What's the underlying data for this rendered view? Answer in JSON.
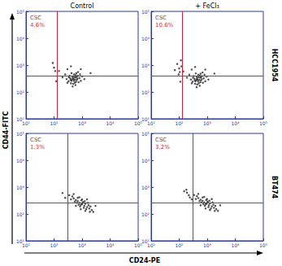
{
  "figure": {
    "columns": [
      "Control",
      "+ FeCl₃"
    ],
    "rows": [
      "HCC1954",
      "BT474"
    ],
    "xlabel": "CD24-PE",
    "ylabel": "CD44-FITC"
  },
  "chart_data": [
    {
      "type": "scatter",
      "log": true,
      "xlim": [
        10,
        100000
      ],
      "ylim": [
        10,
        100000
      ],
      "xticks": [
        {
          "value": 10,
          "label": "10¹"
        },
        {
          "value": 100,
          "label": "10²"
        },
        {
          "value": 1000,
          "label": "10³"
        },
        {
          "value": 10000,
          "label": "10⁴"
        },
        {
          "value": 100000,
          "label": "10⁵"
        }
      ],
      "yticks": [
        {
          "value": 10,
          "label": "10¹"
        },
        {
          "value": 100,
          "label": "10²"
        },
        {
          "value": 1000,
          "label": "10³"
        },
        {
          "value": 10000,
          "label": "10⁴"
        },
        {
          "value": 100000,
          "label": "10⁵"
        }
      ],
      "gate": {
        "x": 130,
        "y": 400
      },
      "annotation": {
        "label": "CSC",
        "value": 4.6,
        "value_label": "4,6%"
      },
      "points": [
        [
          500,
          300
        ],
        [
          420,
          260
        ],
        [
          600,
          350
        ],
        [
          380,
          320
        ],
        [
          650,
          280
        ],
        [
          550,
          220
        ],
        [
          450,
          380
        ],
        [
          700,
          400
        ],
        [
          330,
          250
        ],
        [
          520,
          450
        ],
        [
          800,
          330
        ],
        [
          480,
          200
        ],
        [
          360,
          400
        ],
        [
          620,
          500
        ],
        [
          900,
          260
        ],
        [
          280,
          300
        ],
        [
          560,
          290
        ],
        [
          470,
          330
        ],
        [
          610,
          240
        ],
        [
          400,
          210
        ],
        [
          750,
          230
        ],
        [
          340,
          350
        ],
        [
          530,
          360
        ],
        [
          440,
          290
        ],
        [
          680,
          310
        ],
        [
          590,
          420
        ],
        [
          300,
          220
        ],
        [
          1000,
          380
        ],
        [
          250,
          450
        ],
        [
          720,
          550
        ],
        [
          460,
          160
        ],
        [
          850,
          450
        ],
        [
          390,
          280
        ],
        [
          510,
          260
        ],
        [
          640,
          370
        ],
        [
          420,
          500
        ],
        [
          200,
          350
        ],
        [
          1200,
          300
        ],
        [
          580,
          180
        ],
        [
          300,
          700
        ],
        [
          150,
          600
        ],
        [
          400,
          900
        ],
        [
          900,
          700
        ],
        [
          2000,
          500
        ],
        [
          120,
          250
        ],
        [
          100,
          800
        ],
        [
          90,
          1200
        ],
        [
          110,
          600
        ]
      ]
    },
    {
      "type": "scatter",
      "log": true,
      "xlim": [
        10,
        100000
      ],
      "ylim": [
        10,
        100000
      ],
      "xticks": [
        {
          "value": 10,
          "label": "10¹"
        },
        {
          "value": 100,
          "label": "10²"
        },
        {
          "value": 1000,
          "label": "10³"
        },
        {
          "value": 10000,
          "label": "10⁴"
        },
        {
          "value": 100000,
          "label": "10⁵"
        }
      ],
      "yticks": [
        {
          "value": 10,
          "label": "10¹"
        },
        {
          "value": 100,
          "label": "10²"
        },
        {
          "value": 1000,
          "label": "10³"
        },
        {
          "value": 10000,
          "label": "10⁴"
        },
        {
          "value": 100000,
          "label": "10⁵"
        }
      ],
      "gate": {
        "x": 130,
        "y": 400
      },
      "annotation": {
        "label": "CSC",
        "value": 10.6,
        "value_label": "10,6%"
      },
      "points": [
        [
          450,
          290
        ],
        [
          380,
          250
        ],
        [
          560,
          340
        ],
        [
          350,
          310
        ],
        [
          600,
          270
        ],
        [
          500,
          210
        ],
        [
          420,
          370
        ],
        [
          650,
          390
        ],
        [
          300,
          240
        ],
        [
          480,
          440
        ],
        [
          750,
          320
        ],
        [
          440,
          190
        ],
        [
          330,
          390
        ],
        [
          580,
          480
        ],
        [
          850,
          250
        ],
        [
          260,
          290
        ],
        [
          520,
          280
        ],
        [
          430,
          320
        ],
        [
          570,
          230
        ],
        [
          370,
          200
        ],
        [
          700,
          220
        ],
        [
          310,
          340
        ],
        [
          490,
          350
        ],
        [
          410,
          280
        ],
        [
          640,
          300
        ],
        [
          550,
          410
        ],
        [
          280,
          210
        ],
        [
          950,
          370
        ],
        [
          230,
          440
        ],
        [
          680,
          530
        ],
        [
          420,
          150
        ],
        [
          800,
          440
        ],
        [
          360,
          270
        ],
        [
          470,
          250
        ],
        [
          600,
          360
        ],
        [
          390,
          490
        ],
        [
          190,
          340
        ],
        [
          1100,
          290
        ],
        [
          540,
          170
        ],
        [
          280,
          680
        ],
        [
          140,
          580
        ],
        [
          370,
          850
        ],
        [
          850,
          680
        ],
        [
          1800,
          480
        ],
        [
          110,
          240
        ],
        [
          100,
          750
        ],
        [
          85,
          1100
        ],
        [
          105,
          550
        ],
        [
          120,
          900
        ],
        [
          70,
          650
        ],
        [
          95,
          450
        ],
        [
          115,
          1500
        ]
      ]
    },
    {
      "type": "scatter",
      "log": true,
      "xlim": [
        10,
        100000
      ],
      "ylim": [
        10,
        100000
      ],
      "xticks": [
        {
          "value": 10,
          "label": "10¹"
        },
        {
          "value": 100,
          "label": "10²"
        },
        {
          "value": 1000,
          "label": "10³"
        },
        {
          "value": 10000,
          "label": "10⁴"
        },
        {
          "value": 100000,
          "label": "10⁵"
        }
      ],
      "yticks": [
        {
          "value": 10,
          "label": "10¹"
        },
        {
          "value": 100,
          "label": "10²"
        },
        {
          "value": 1000,
          "label": "10³"
        },
        {
          "value": 10000,
          "label": "10⁴"
        },
        {
          "value": 100000,
          "label": "10⁵"
        }
      ],
      "gate": {
        "x": 300,
        "y": 270
      },
      "annotation": {
        "label": "CSC",
        "value": 1.3,
        "value_label": "1,3%"
      },
      "points": [
        [
          1000,
          230
        ],
        [
          800,
          260
        ],
        [
          1200,
          200
        ],
        [
          700,
          300
        ],
        [
          1500,
          180
        ],
        [
          900,
          220
        ],
        [
          1100,
          280
        ],
        [
          600,
          330
        ],
        [
          1800,
          160
        ],
        [
          1300,
          240
        ],
        [
          750,
          220
        ],
        [
          950,
          320
        ],
        [
          1400,
          150
        ],
        [
          650,
          260
        ],
        [
          1700,
          210
        ],
        [
          500,
          380
        ],
        [
          2200,
          140
        ],
        [
          850,
          190
        ],
        [
          1150,
          170
        ],
        [
          1000,
          350
        ],
        [
          550,
          290
        ],
        [
          1600,
          260
        ],
        [
          2000,
          190
        ],
        [
          700,
          400
        ],
        [
          1250,
          300
        ],
        [
          900,
          150
        ],
        [
          400,
          350
        ],
        [
          2500,
          120
        ],
        [
          1300,
          130
        ],
        [
          800,
          420
        ],
        [
          450,
          450
        ],
        [
          3000,
          200
        ],
        [
          600,
          200
        ],
        [
          1900,
          120
        ],
        [
          1050,
          260
        ],
        [
          350,
          500
        ],
        [
          200,
          600
        ],
        [
          250,
          400
        ],
        [
          500,
          550
        ],
        [
          1500,
          350
        ]
      ]
    },
    {
      "type": "scatter",
      "log": true,
      "xlim": [
        10,
        100000
      ],
      "ylim": [
        10,
        100000
      ],
      "xticks": [
        {
          "value": 10,
          "label": "10¹"
        },
        {
          "value": 100,
          "label": "10²"
        },
        {
          "value": 1000,
          "label": "10³"
        },
        {
          "value": 10000,
          "label": "10⁴"
        },
        {
          "value": 100000,
          "label": "10⁵"
        }
      ],
      "yticks": [
        {
          "value": 10,
          "label": "10¹"
        },
        {
          "value": 100,
          "label": "10²"
        },
        {
          "value": 1000,
          "label": "10³"
        },
        {
          "value": 10000,
          "label": "10⁴"
        },
        {
          "value": 100000,
          "label": "10⁵"
        }
      ],
      "gate": {
        "x": 300,
        "y": 270
      },
      "annotation": {
        "label": "CSC",
        "value": 3.2,
        "value_label": "3,2%"
      },
      "points": [
        [
          950,
          240
        ],
        [
          780,
          270
        ],
        [
          1150,
          210
        ],
        [
          680,
          310
        ],
        [
          1450,
          190
        ],
        [
          880,
          230
        ],
        [
          1050,
          290
        ],
        [
          580,
          340
        ],
        [
          1750,
          170
        ],
        [
          1250,
          250
        ],
        [
          730,
          230
        ],
        [
          920,
          330
        ],
        [
          1350,
          160
        ],
        [
          630,
          270
        ],
        [
          1650,
          220
        ],
        [
          480,
          390
        ],
        [
          2100,
          150
        ],
        [
          820,
          200
        ],
        [
          1100,
          180
        ],
        [
          980,
          360
        ],
        [
          530,
          300
        ],
        [
          1550,
          270
        ],
        [
          1950,
          200
        ],
        [
          680,
          410
        ],
        [
          1200,
          310
        ],
        [
          870,
          160
        ],
        [
          390,
          360
        ],
        [
          2400,
          130
        ],
        [
          1250,
          140
        ],
        [
          780,
          430
        ],
        [
          430,
          460
        ],
        [
          2900,
          210
        ],
        [
          580,
          210
        ],
        [
          1850,
          130
        ],
        [
          1020,
          270
        ],
        [
          340,
          510
        ],
        [
          190,
          620
        ],
        [
          240,
          410
        ],
        [
          480,
          560
        ],
        [
          1450,
          360
        ],
        [
          220,
          500
        ],
        [
          150,
          700
        ],
        [
          280,
          350
        ],
        [
          180,
          800
        ]
      ]
    }
  ]
}
